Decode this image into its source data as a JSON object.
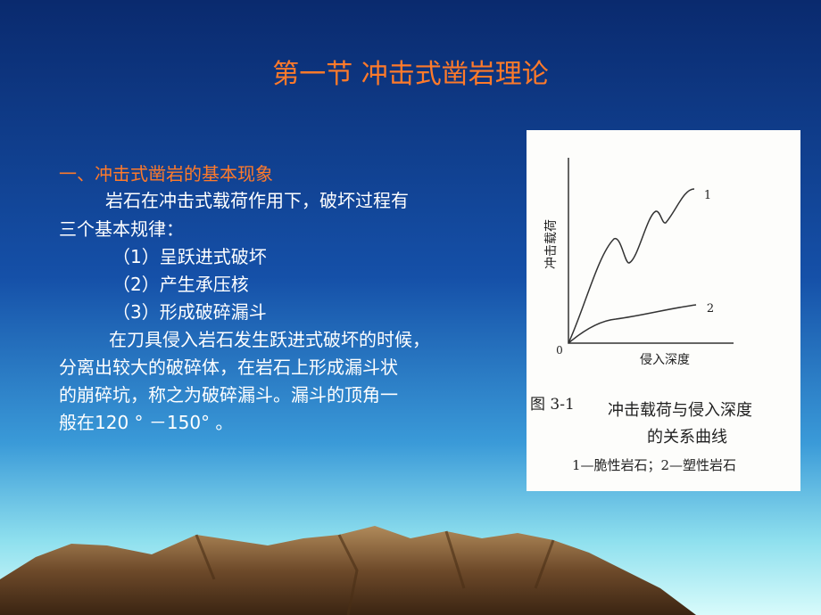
{
  "title": "第一节  冲击式凿岩理论",
  "section": {
    "heading": "一、冲击式凿岩的基本现象",
    "lines": [
      "岩石在冲击式载荷作用下，破坏过程有",
      "三个基本规律：",
      "（1）呈跃进式破坏",
      "（2）产生承压核",
      "（3）形成破碎漏斗",
      "在刀具侵入岩石发生跃进式破坏的时候，",
      "分离出较大的破碎体，在岩石上形成漏斗状",
      "的崩碎坑，称之为破碎漏斗。漏斗的顶角一",
      "般在120 °  －150°  。"
    ]
  },
  "figure": {
    "y_axis_label": "冲击载荷",
    "x_axis_label": "侵入深度",
    "origin": "0",
    "curve_labels": [
      "1",
      "2"
    ],
    "caption": {
      "number": "图 3-1",
      "lines": [
        "冲击载荷与侵入深度",
        "的关系曲线"
      ],
      "legend": "1—脆性岩石；2—塑性岩石"
    }
  }
}
